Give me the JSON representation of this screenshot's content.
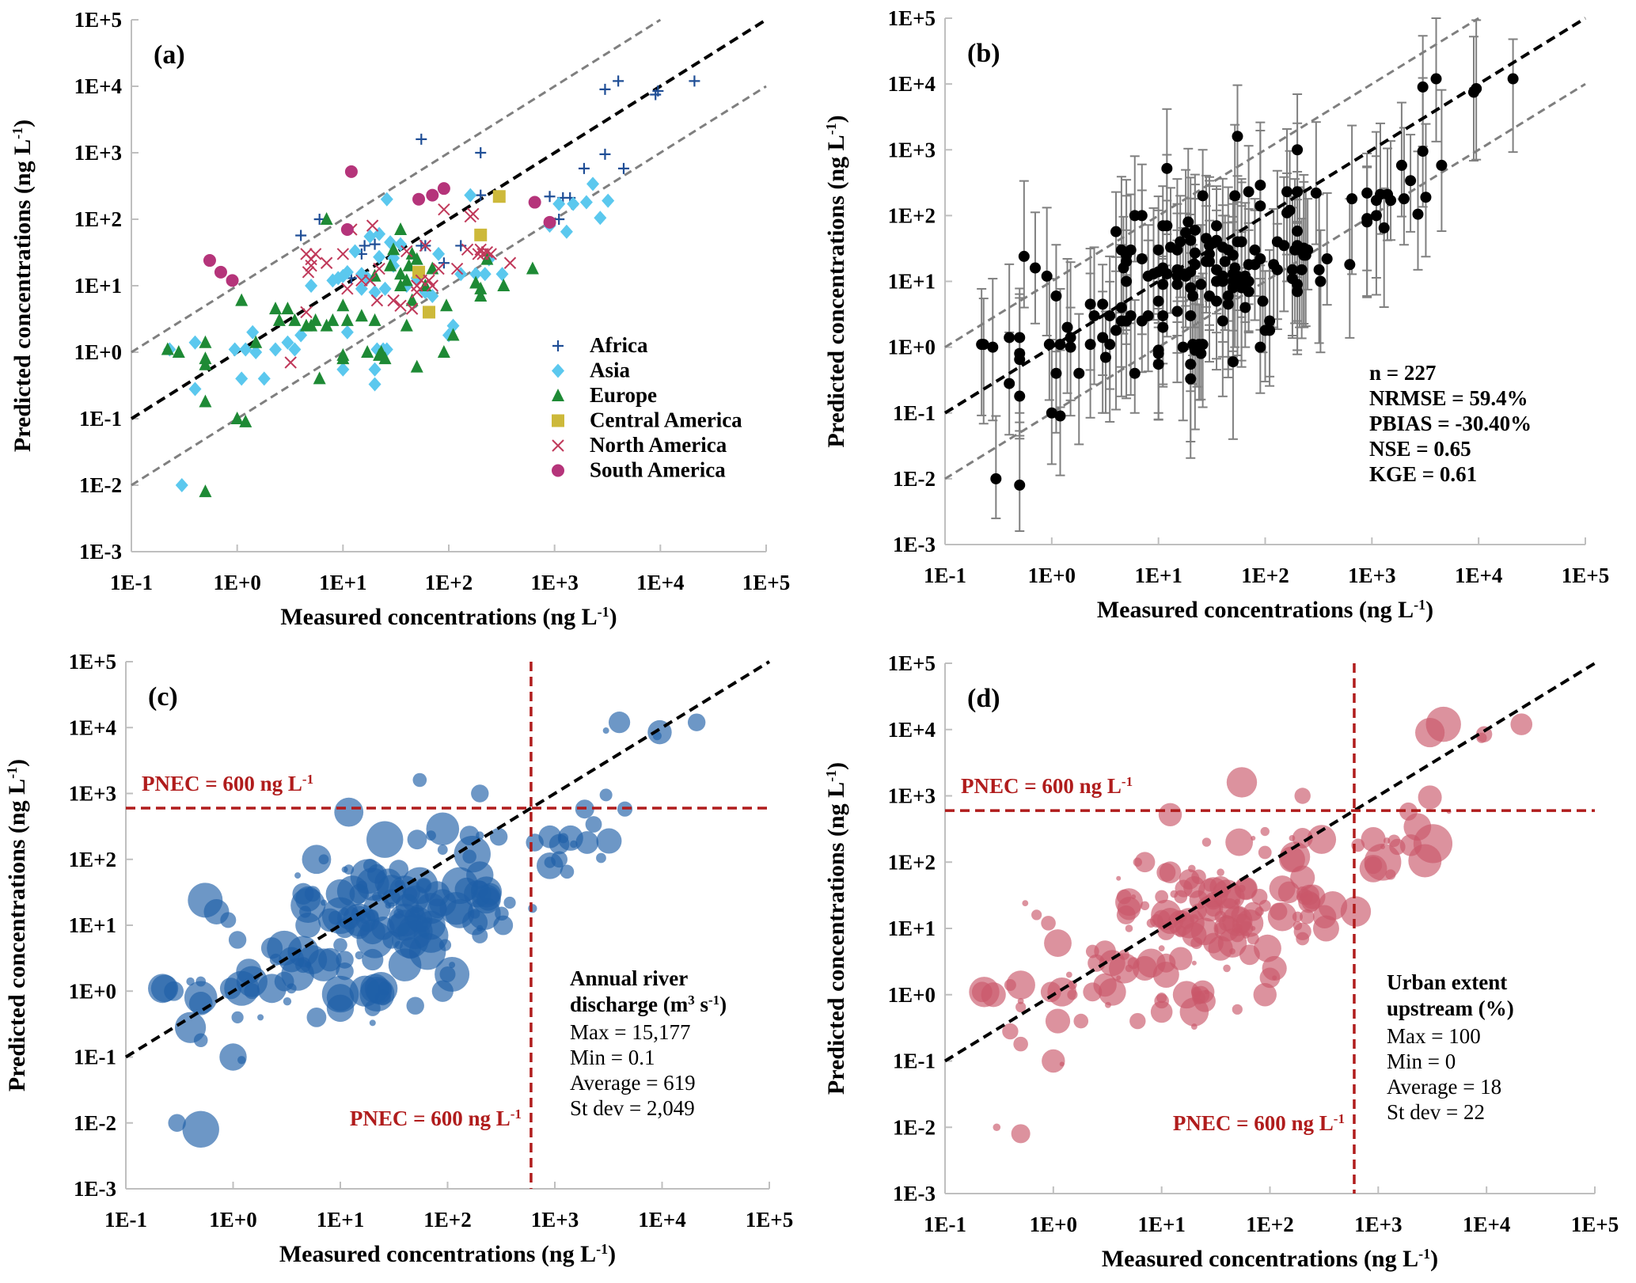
{
  "chart_data": [
    {
      "id": "a",
      "type": "scatter",
      "panel_label": "(a)",
      "xlabel": "Measured concentrations (ng L",
      "xlabel_sup": "-1",
      "xlabel_end": ")",
      "ylabel": "Predicted concentrations (ng L",
      "ylabel_sup": "-1",
      "ylabel_end": ")",
      "xscale": "log",
      "yscale": "log",
      "xlim": [
        0.1,
        100000
      ],
      "ylim": [
        0.001,
        100000
      ],
      "x_ticks": [
        "1E-1",
        "1E+0",
        "1E+1",
        "1E+2",
        "1E+3",
        "1E+4",
        "1E+5"
      ],
      "y_ticks": [
        "1E-3",
        "1E-2",
        "1E-1",
        "1E+0",
        "1E+1",
        "1E+2",
        "1E+3",
        "1E+4",
        "1E+5"
      ],
      "legend_position": "bottom-right",
      "reference_lines": [
        {
          "name": "1:1 line",
          "factor": 1,
          "style": "dashed",
          "color": "#000000"
        },
        {
          "name": "10x over",
          "factor": 10,
          "style": "dashed",
          "color": "#7f7f7f"
        },
        {
          "name": "10x under",
          "factor": 0.1,
          "style": "dashed",
          "color": "#7f7f7f"
        }
      ],
      "series": [
        {
          "name": "Africa",
          "marker": "plus",
          "color": "#1f4e96",
          "points": [
            [
              4,
              57
            ],
            [
              6,
              100
            ],
            [
              15,
              30
            ],
            [
              16,
              40
            ],
            [
              20,
              42
            ],
            [
              12,
              13
            ],
            [
              55,
              1600
            ],
            [
              55,
              40
            ],
            [
              90,
              22
            ],
            [
              200,
              1000
            ],
            [
              200,
              230
            ],
            [
              900,
              220
            ],
            [
              1100,
              100
            ],
            [
              1200,
              210
            ],
            [
              1400,
              210
            ],
            [
              1900,
              580
            ],
            [
              3000,
              950
            ],
            [
              3000,
              9000
            ],
            [
              4000,
              12000
            ],
            [
              4500,
              580
            ],
            [
              9000,
              7500
            ],
            [
              9500,
              8500
            ],
            [
              21000,
              12000
            ],
            [
              60,
              40
            ],
            [
              130,
              40
            ]
          ]
        },
        {
          "name": "Asia",
          "marker": "diamond",
          "color": "#5bc8ee",
          "points": [
            [
              0.23,
              1.1
            ],
            [
              0.3,
              0.01
            ],
            [
              0.4,
              1.4
            ],
            [
              0.4,
              0.28
            ],
            [
              0.95,
              1.1
            ],
            [
              1.1,
              0.4
            ],
            [
              1.2,
              1.1
            ],
            [
              1.4,
              2
            ],
            [
              1.5,
              1
            ],
            [
              1.8,
              0.4
            ],
            [
              2.3,
              1.1
            ],
            [
              3,
              1.4
            ],
            [
              3.5,
              1.1
            ],
            [
              4,
              1.8
            ],
            [
              8,
              12
            ],
            [
              9,
              13
            ],
            [
              10,
              14
            ],
            [
              10,
              0.55
            ],
            [
              11,
              2
            ],
            [
              11,
              16
            ],
            [
              13,
              33
            ],
            [
              15,
              9
            ],
            [
              17,
              13
            ],
            [
              18,
              55
            ],
            [
              20,
              8
            ],
            [
              20,
              0.55
            ],
            [
              20,
              0.33
            ],
            [
              21,
              1.1
            ],
            [
              22,
              60
            ],
            [
              22,
              27
            ],
            [
              24,
              1.1
            ],
            [
              25,
              9
            ],
            [
              26,
              1.1
            ],
            [
              26,
              200
            ],
            [
              28,
              45
            ],
            [
              30,
              26
            ],
            [
              35,
              42
            ],
            [
              40,
              10
            ],
            [
              50,
              13
            ],
            [
              60,
              8
            ],
            [
              70,
              7
            ],
            [
              80,
              30
            ],
            [
              100,
              1.8
            ],
            [
              110,
              2.5
            ],
            [
              130,
              15
            ],
            [
              160,
              230
            ],
            [
              180,
              15
            ],
            [
              220,
              15
            ],
            [
              240,
              25
            ],
            [
              320,
              15
            ],
            [
              900,
              80
            ],
            [
              1100,
              170
            ],
            [
              1300,
              65
            ],
            [
              1500,
              170
            ],
            [
              2000,
              180
            ],
            [
              2300,
              340
            ],
            [
              2700,
              105
            ],
            [
              3200,
              190
            ],
            [
              5,
              10
            ],
            [
              15,
              15
            ],
            [
              30,
              20
            ]
          ]
        },
        {
          "name": "Europe",
          "marker": "triangle",
          "color": "#1e8a35",
          "points": [
            [
              0.22,
              1.1
            ],
            [
              0.28,
              1
            ],
            [
              0.5,
              1.4
            ],
            [
              0.5,
              0.8
            ],
            [
              0.5,
              0.65
            ],
            [
              0.5,
              0.18
            ],
            [
              0.5,
              0.008
            ],
            [
              1,
              0.1
            ],
            [
              1.1,
              6
            ],
            [
              1.2,
              0.09
            ],
            [
              1.5,
              1.4
            ],
            [
              2.3,
              4.5
            ],
            [
              2.5,
              3
            ],
            [
              3,
              4.5
            ],
            [
              3.5,
              3
            ],
            [
              4.5,
              2.5
            ],
            [
              5,
              2.5
            ],
            [
              5.5,
              3
            ],
            [
              6,
              0.4
            ],
            [
              7,
              100
            ],
            [
              7,
              2.5
            ],
            [
              8,
              3
            ],
            [
              10,
              5
            ],
            [
              10,
              0.9
            ],
            [
              10,
              0.8
            ],
            [
              11,
              3
            ],
            [
              15,
              3.5
            ],
            [
              17,
              1
            ],
            [
              20,
              3
            ],
            [
              20,
              14
            ],
            [
              22,
              0.9
            ],
            [
              23,
              1
            ],
            [
              25,
              0.8
            ],
            [
              28,
              20
            ],
            [
              30,
              35
            ],
            [
              35,
              70
            ],
            [
              35,
              15
            ],
            [
              40,
              12
            ],
            [
              42,
              20
            ],
            [
              45,
              30
            ],
            [
              45,
              6
            ],
            [
              50,
              25
            ],
            [
              50,
              0.6
            ],
            [
              60,
              10
            ],
            [
              70,
              18
            ],
            [
              90,
              1
            ],
            [
              95,
              5
            ],
            [
              110,
              1.8
            ],
            [
              180,
              11
            ],
            [
              200,
              7
            ],
            [
              200,
              9
            ],
            [
              230,
              25
            ],
            [
              330,
              10
            ],
            [
              620,
              18
            ],
            [
              40,
              2.5
            ],
            [
              35,
              10
            ]
          ]
        },
        {
          "name": "Central America",
          "marker": "square",
          "color": "#cdb93a",
          "points": [
            [
              52,
              16
            ],
            [
              65,
              4
            ],
            [
              200,
              58
            ],
            [
              300,
              220
            ]
          ]
        },
        {
          "name": "North America",
          "marker": "x",
          "color": "#c0395a",
          "points": [
            [
              3.2,
              0.7
            ],
            [
              4.5,
              4
            ],
            [
              4.5,
              30
            ],
            [
              4.7,
              16
            ],
            [
              5,
              20
            ],
            [
              5,
              25
            ],
            [
              5.5,
              30
            ],
            [
              7,
              22
            ],
            [
              10,
              30
            ],
            [
              11,
              9
            ],
            [
              12,
              70
            ],
            [
              15,
              12
            ],
            [
              18,
              12
            ],
            [
              19,
              80
            ],
            [
              21,
              6
            ],
            [
              22,
              18
            ],
            [
              30,
              6
            ],
            [
              35,
              5
            ],
            [
              40,
              33
            ],
            [
              45,
              4.5
            ],
            [
              50,
              10
            ],
            [
              50,
              8
            ],
            [
              55,
              12
            ],
            [
              60,
              40
            ],
            [
              65,
              12
            ],
            [
              70,
              10
            ],
            [
              80,
              18
            ],
            [
              90,
              140
            ],
            [
              120,
              18
            ],
            [
              150,
              35
            ],
            [
              160,
              110
            ],
            [
              170,
              120
            ],
            [
              190,
              30
            ],
            [
              200,
              35
            ],
            [
              210,
              30
            ],
            [
              230,
              32
            ],
            [
              250,
              30
            ],
            [
              380,
              22
            ]
          ]
        },
        {
          "name": "South America",
          "marker": "circle",
          "color": "#b5347a",
          "points": [
            [
              0.55,
              24
            ],
            [
              0.7,
              16
            ],
            [
              0.9,
              12
            ],
            [
              11,
              70
            ],
            [
              12,
              520
            ],
            [
              52,
              200
            ],
            [
              70,
              230
            ],
            [
              90,
              290
            ],
            [
              650,
              180
            ],
            [
              900,
              90
            ]
          ]
        }
      ]
    },
    {
      "id": "b",
      "type": "scatter",
      "panel_label": "(b)",
      "xlabel": "Measured concentrations (ng L",
      "xlabel_sup": "-1",
      "xlabel_end": ")",
      "ylabel": "Predicted concentrations (ng L",
      "ylabel_sup": "-1",
      "ylabel_end": ")",
      "xscale": "log",
      "yscale": "log",
      "xlim": [
        0.1,
        100000
      ],
      "ylim": [
        0.001,
        100000
      ],
      "x_ticks": [
        "1E-1",
        "1E+0",
        "1E+1",
        "1E+2",
        "1E+3",
        "1E+4",
        "1E+5"
      ],
      "y_ticks": [
        "1E-3",
        "1E-2",
        "1E-1",
        "1E+0",
        "1E+1",
        "1E+2",
        "1E+3",
        "1E+4",
        "1E+5"
      ],
      "error_bars": "vertical, approx. x0.1 to x10-x100 of predicted value",
      "marker_color": "#000000",
      "errorbar_color": "#808080",
      "stats": [
        "n = 227",
        "NRMSE = 59.4%",
        "PBIAS = -30.40%",
        "NSE = 0.65",
        "KGE = 0.61"
      ]
    },
    {
      "id": "c",
      "type": "scatter",
      "subtype": "bubble",
      "panel_label": "(c)",
      "bubble_color": "#1f5fa8",
      "bubble_size_variable": "Annual river discharge (m³ s⁻¹)",
      "pnec_value": 600,
      "pnec_label": "PNEC = 600 ng L",
      "pnec_sup": "-1",
      "info_title_1": "Annual river",
      "info_title_2": "discharge (m",
      "info_title_sup1": "3",
      "info_title_mid": " s",
      "info_title_sup2": "-1",
      "info_title_end": ")",
      "info_lines": [
        "Max = 15,177",
        "Min = 0.1",
        "Average = 619",
        "St dev = 2,049"
      ],
      "xlim": [
        0.1,
        100000
      ],
      "ylim": [
        0.001,
        100000
      ]
    },
    {
      "id": "d",
      "type": "scatter",
      "subtype": "bubble",
      "panel_label": "(d)",
      "bubble_color": "#c9576a",
      "bubble_size_variable": "Urban extent upstream (%)",
      "pnec_value": 600,
      "pnec_label": "PNEC = 600 ng L",
      "pnec_sup": "-1",
      "info_title_1": "Urban extent",
      "info_title_2": "upstream (%)",
      "info_lines": [
        "Max = 100",
        "Min = 0",
        "Average = 18",
        "St dev = 22"
      ],
      "xlim": [
        0.1,
        100000
      ],
      "ylim": [
        0.001,
        100000
      ]
    }
  ]
}
